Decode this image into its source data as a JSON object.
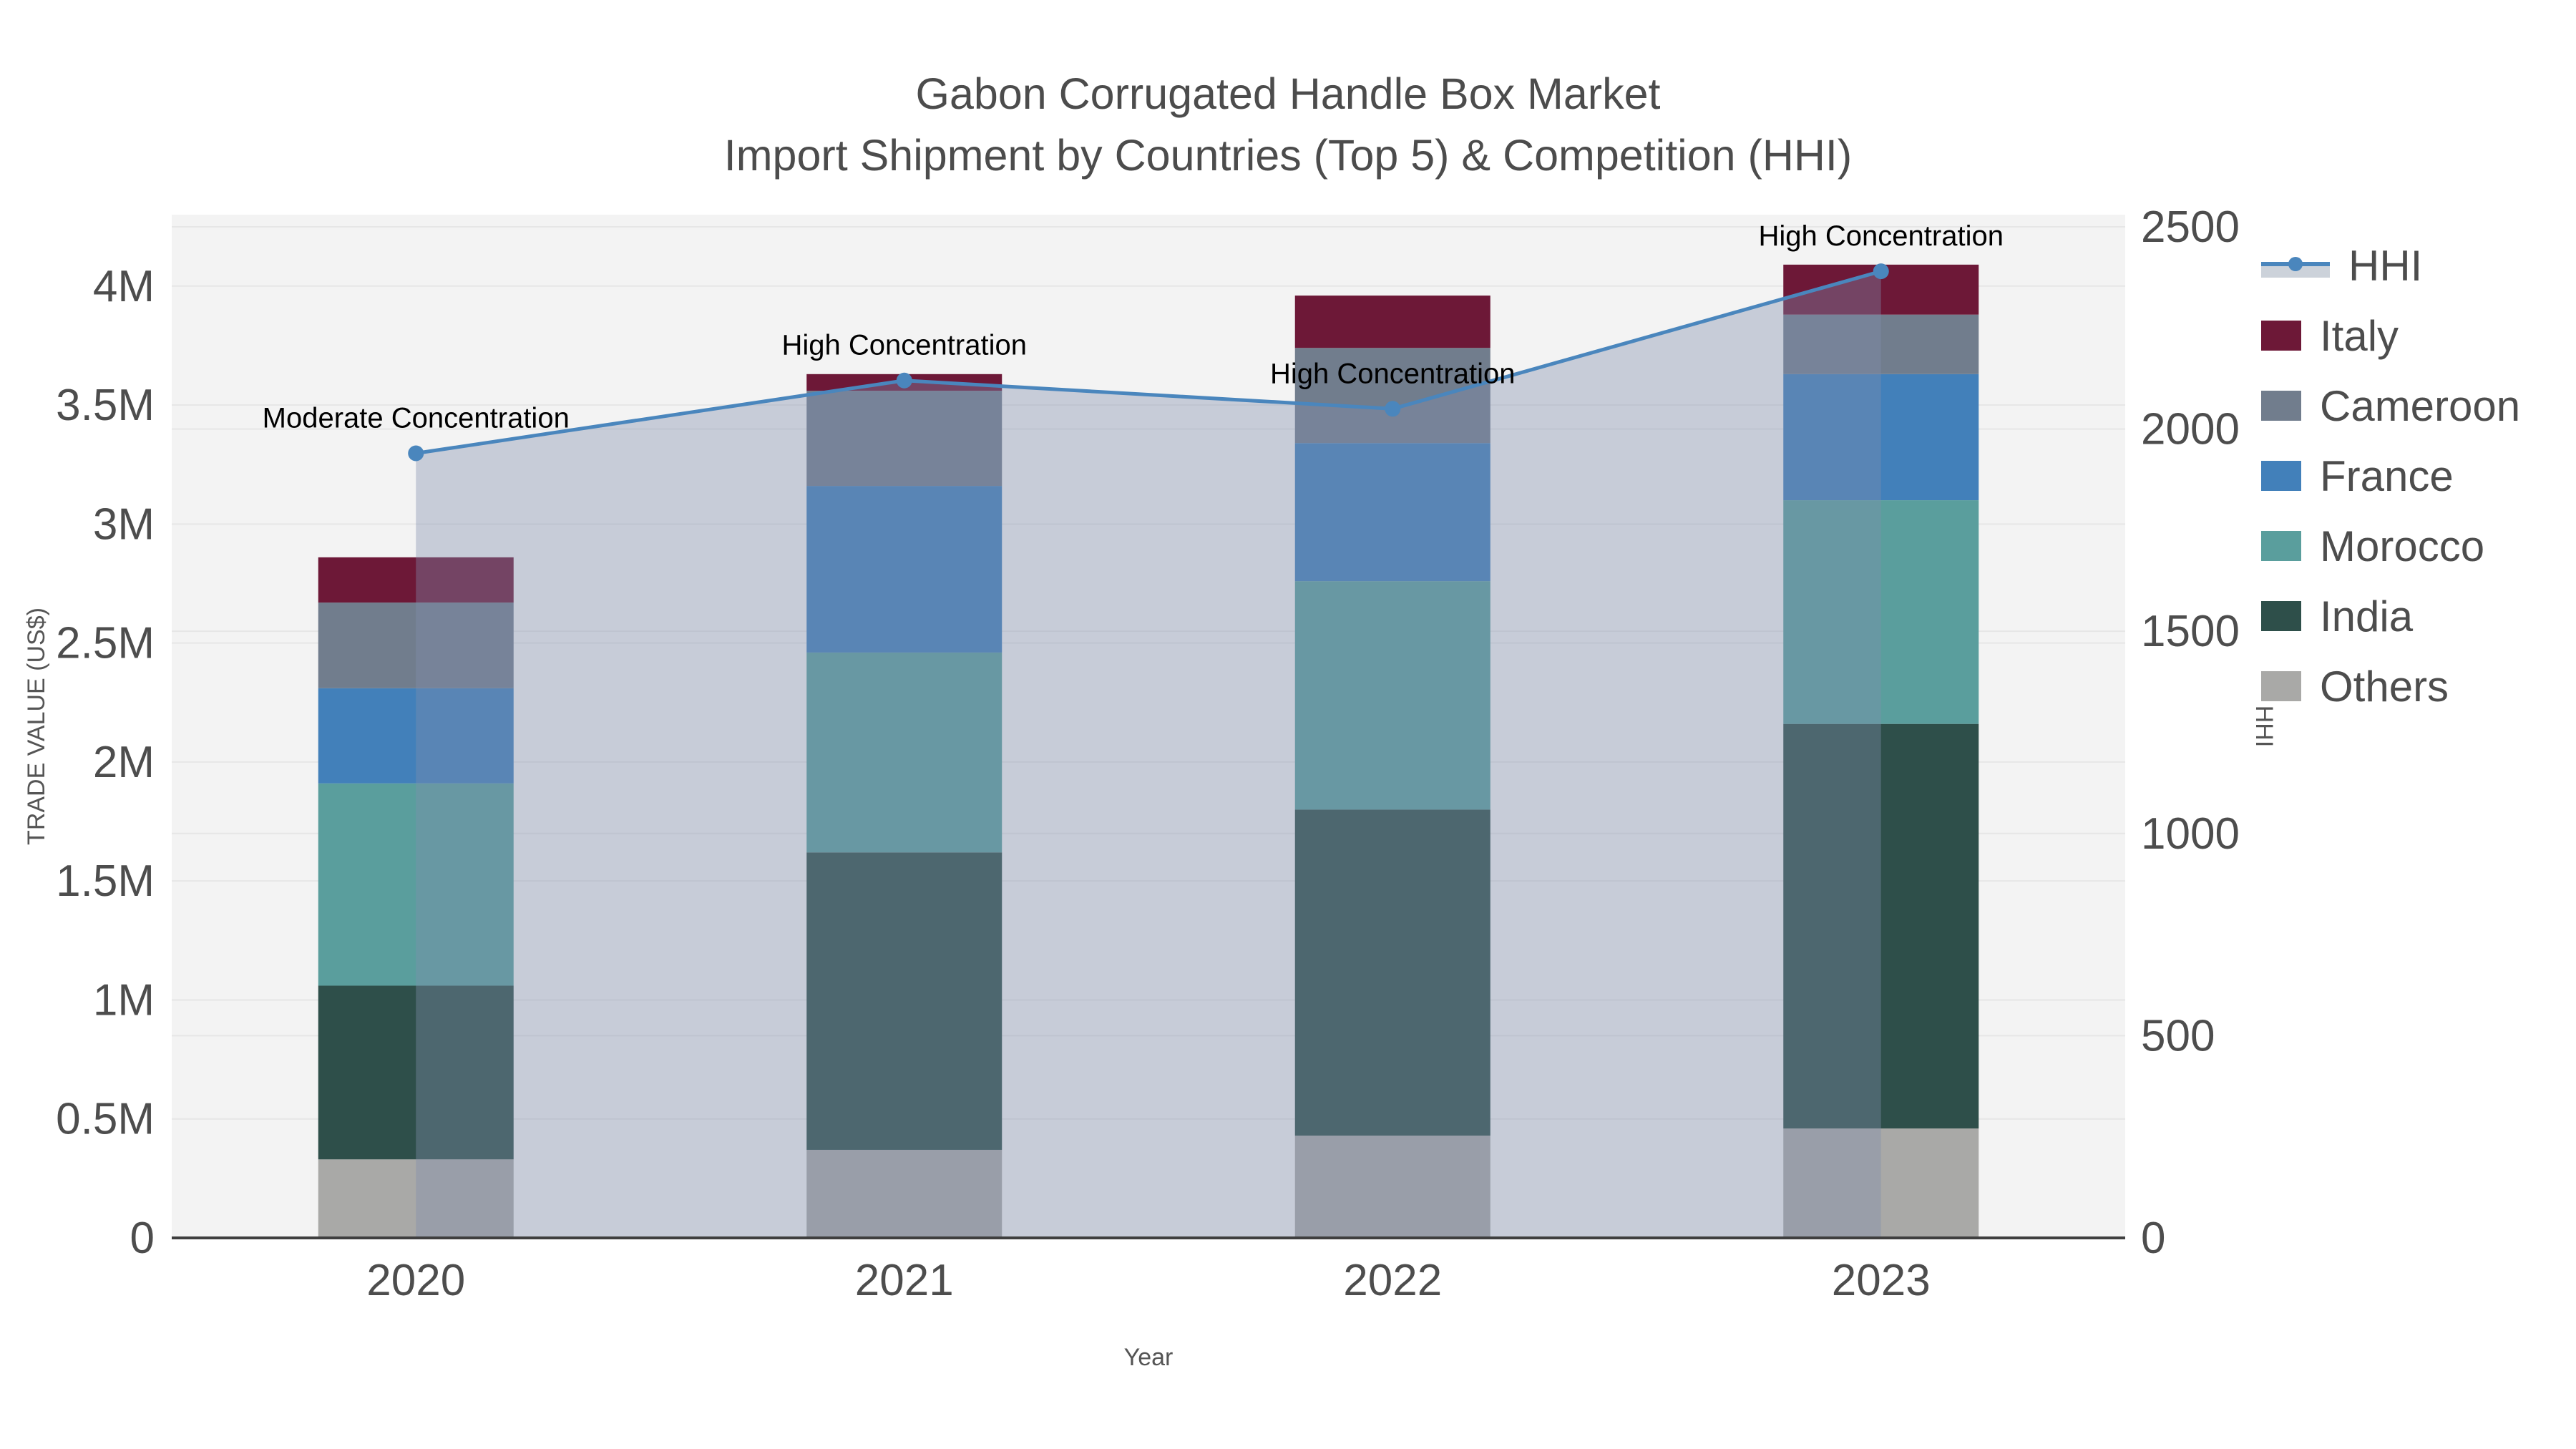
{
  "title": "Gabon Corrugated Handle Box Market",
  "subtitle": "Import Shipment by Countries (Top 5) & Competition (HHI)",
  "chart_data": {
    "type": "bar",
    "subtype": "stacked-bars-with-line-overlay",
    "title": "Gabon Corrugated Handle Box Market",
    "subtitle": "Import Shipment by Countries (Top 5) & Competition (HHI)",
    "categories": [
      "2020",
      "2021",
      "2022",
      "2023"
    ],
    "xlabel": "Year",
    "ylabel_left": "TRADE VALUE (US$)",
    "ylabel_right": "HHI",
    "ylim_left": [
      0,
      4300000
    ],
    "ylim_right": [
      0,
      2530
    ],
    "yticks_left": [
      {
        "label": "0",
        "value": 0
      },
      {
        "label": "0.5M",
        "value": 500000
      },
      {
        "label": "1M",
        "value": 1000000
      },
      {
        "label": "1.5M",
        "value": 1500000
      },
      {
        "label": "2M",
        "value": 2000000
      },
      {
        "label": "2.5M",
        "value": 2500000
      },
      {
        "label": "3M",
        "value": 3000000
      },
      {
        "label": "3.5M",
        "value": 3500000
      },
      {
        "label": "4M",
        "value": 4000000
      }
    ],
    "yticks_right": [
      {
        "label": "0",
        "value": 0
      },
      {
        "label": "500",
        "value": 500
      },
      {
        "label": "1000",
        "value": 1000
      },
      {
        "label": "1500",
        "value": 1500
      },
      {
        "label": "2000",
        "value": 2000
      },
      {
        "label": "2500",
        "value": 2500
      }
    ],
    "series": [
      {
        "name": "Others",
        "color": "#a9a9a7",
        "values": [
          330000,
          370000,
          430000,
          460000
        ]
      },
      {
        "name": "India",
        "color": "#2e4f4a",
        "values": [
          730000,
          1250000,
          1370000,
          1700000
        ]
      },
      {
        "name": "Morocco",
        "color": "#5a9e9d",
        "values": [
          850000,
          840000,
          960000,
          940000
        ]
      },
      {
        "name": "France",
        "color": "#4280ba",
        "values": [
          400000,
          700000,
          580000,
          530000
        ]
      },
      {
        "name": "Cameroon",
        "color": "#717d8d",
        "values": [
          360000,
          400000,
          400000,
          250000
        ]
      },
      {
        "name": "Italy",
        "color": "#6d1837",
        "values": [
          190000,
          70000,
          220000,
          210000
        ]
      }
    ],
    "bar_totals_usd": [
      2860000,
      3630000,
      3960000,
      4090000
    ],
    "hhi_line": {
      "name": "HHI",
      "values": [
        1940,
        2120,
        2050,
        2390
      ],
      "line_color": "#4a86bd",
      "area_fill_color": "rgba(128,143,173,0.38)"
    },
    "annotations": [
      {
        "text": "Moderate Concentration",
        "category_index": 0
      },
      {
        "text": "High Concentration",
        "category_index": 1
      },
      {
        "text": "High Concentration",
        "category_index": 2
      },
      {
        "text": "High Concentration",
        "category_index": 3
      }
    ],
    "legend": [
      {
        "label": "HHI",
        "type": "line"
      },
      {
        "label": "Italy",
        "type": "swatch",
        "color": "#6d1837"
      },
      {
        "label": "Cameroon",
        "type": "swatch",
        "color": "#717d8d"
      },
      {
        "label": "France",
        "type": "swatch",
        "color": "#4280ba"
      },
      {
        "label": "Morocco",
        "type": "swatch",
        "color": "#5a9e9d"
      },
      {
        "label": "India",
        "type": "swatch",
        "color": "#2e4f4a"
      },
      {
        "label": "Others",
        "type": "swatch",
        "color": "#a9a9a7"
      }
    ],
    "legend_position": "right",
    "grid": true,
    "plot_background": "#f3f3f3",
    "gridline_color": "#e6e6e6",
    "axis_line_color": "#3f3f3f",
    "tick_text_color": "#4d4d4d",
    "annotation_text_color": "#000000"
  }
}
